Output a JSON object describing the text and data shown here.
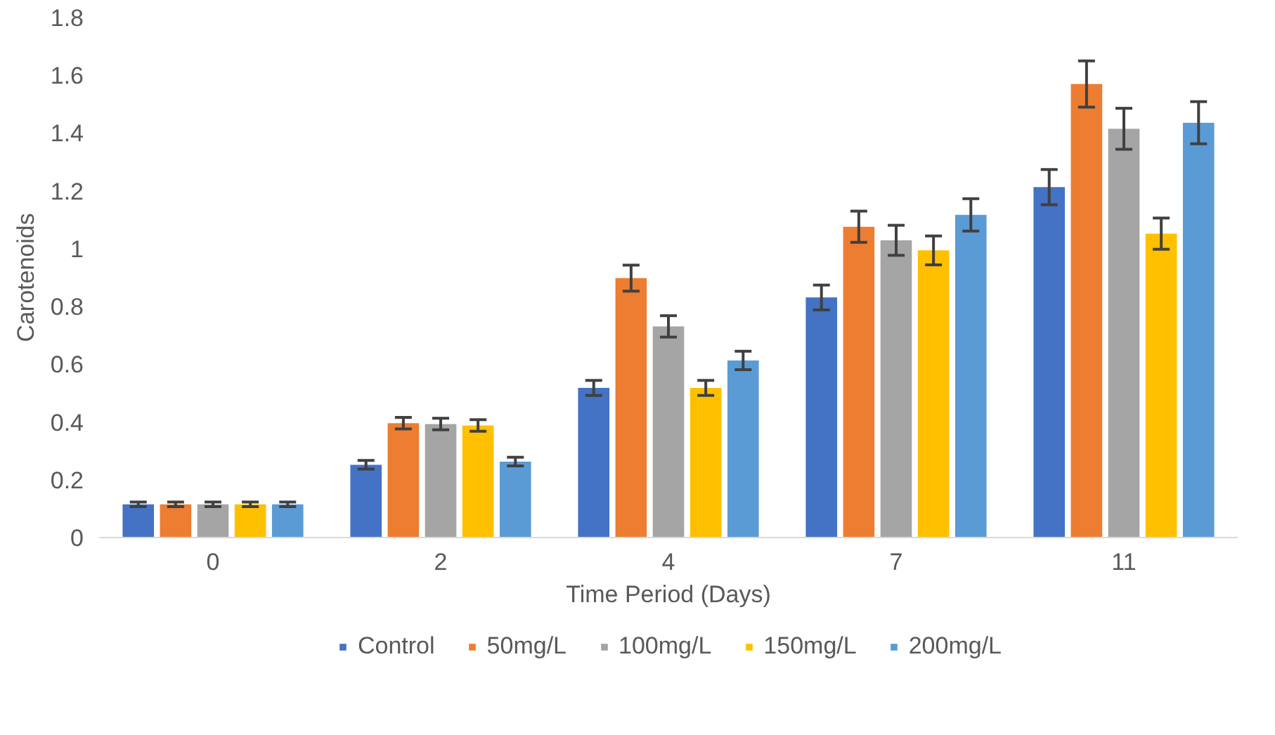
{
  "chart_data": {
    "type": "bar",
    "xlabel": "Time Period (Days)",
    "ylabel": "Carotenoids",
    "categories": [
      "0",
      "2",
      "4",
      "7",
      "11"
    ],
    "ylim": [
      0,
      1.8
    ],
    "yticks": [
      0,
      0.2,
      0.4,
      0.6,
      0.8,
      1,
      1.2,
      1.4,
      1.6,
      1.8
    ],
    "grid": false,
    "legend": "bottom",
    "series": [
      {
        "name": "Control",
        "color": "#4472c4",
        "values": [
          0.115,
          0.252,
          0.518,
          0.831,
          1.213
        ],
        "errors": [
          0.008,
          0.015,
          0.026,
          0.043,
          0.061
        ]
      },
      {
        "name": "50mg/L",
        "color": "#ed7d31",
        "values": [
          0.115,
          0.396,
          0.898,
          1.076,
          1.57
        ],
        "errors": [
          0.008,
          0.02,
          0.045,
          0.054,
          0.08
        ]
      },
      {
        "name": "100mg/L",
        "color": "#a5a5a5",
        "values": [
          0.115,
          0.393,
          0.731,
          1.029,
          1.415
        ],
        "errors": [
          0.008,
          0.02,
          0.037,
          0.052,
          0.071
        ]
      },
      {
        "name": "150mg/L",
        "color": "#ffc000",
        "values": [
          0.115,
          0.388,
          0.518,
          0.994,
          1.052
        ],
        "errors": [
          0.008,
          0.02,
          0.026,
          0.05,
          0.054
        ]
      },
      {
        "name": "200mg/L",
        "color": "#5b9bd5",
        "values": [
          0.115,
          0.263,
          0.613,
          1.117,
          1.436
        ],
        "errors": [
          0.008,
          0.015,
          0.032,
          0.056,
          0.073
        ]
      }
    ]
  }
}
